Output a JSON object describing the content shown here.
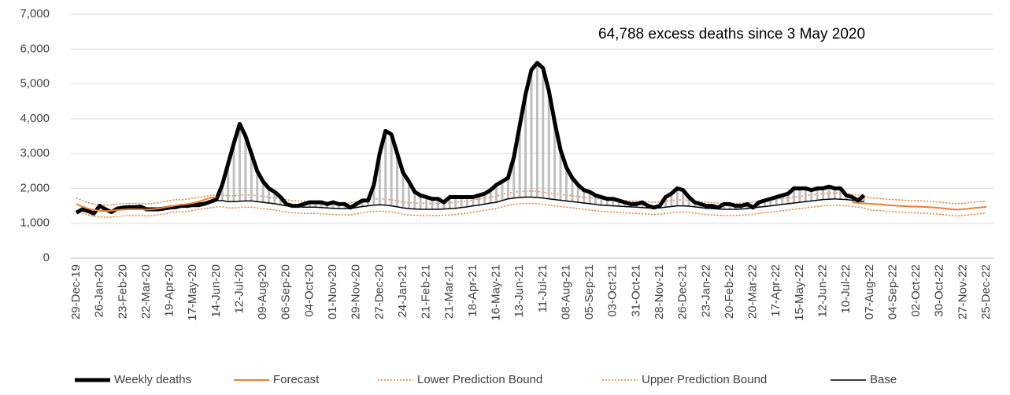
{
  "chart_data": {
    "type": "line",
    "annotation": "64,788 excess deaths since 3 May 2020",
    "categories": [
      "29-Dec-19",
      null,
      null,
      null,
      "26-Jan-20",
      null,
      null,
      null,
      "23-Feb-20",
      null,
      null,
      null,
      "22-Mar-20",
      null,
      null,
      null,
      "19-Apr-20",
      null,
      null,
      null,
      "17-May-20",
      null,
      null,
      null,
      "14-Jun-20",
      null,
      null,
      null,
      "12-Jul-20",
      null,
      null,
      null,
      "09-Aug-20",
      null,
      null,
      null,
      "06-Sep-20",
      null,
      null,
      null,
      "04-Oct-20",
      null,
      null,
      null,
      "01-Nov-20",
      null,
      null,
      null,
      "29-Nov-20",
      null,
      null,
      null,
      "27-Dec-20",
      null,
      null,
      null,
      "24-Jan-21",
      null,
      null,
      null,
      "21-Feb-21",
      null,
      null,
      null,
      "21-Mar-21",
      null,
      null,
      null,
      "18-Apr-21",
      null,
      null,
      null,
      "16-May-21",
      null,
      null,
      null,
      "13-Jun-21",
      null,
      null,
      null,
      "11-Jul-21",
      null,
      null,
      null,
      "08-Aug-21",
      null,
      null,
      null,
      "05-Sep-21",
      null,
      null,
      null,
      "03-Oct-21",
      null,
      null,
      null,
      "31-Oct-21",
      null,
      null,
      null,
      "28-Nov-21",
      null,
      null,
      null,
      "26-Dec-21",
      null,
      null,
      null,
      "23-Jan-22",
      null,
      null,
      null,
      "20-Feb-22",
      null,
      null,
      null,
      "20-Mar-22",
      null,
      null,
      null,
      "17-Apr-22",
      null,
      null,
      null,
      "15-May-22",
      null,
      null,
      null,
      "12-Jun-22",
      null,
      null,
      null,
      "10-Jul-22",
      null,
      null,
      null,
      "07-Aug-22",
      null,
      null,
      null,
      "04-Sep-22",
      null,
      null,
      null,
      "02-Oct-22",
      null,
      null,
      null,
      "30-Oct-22",
      null,
      null,
      null,
      "27-Nov-22",
      null,
      null,
      null,
      "25-Dec-22"
    ],
    "ylim": [
      0,
      7000
    ],
    "yticks": [
      0,
      {
        "value": 1000,
        "label": "1,000"
      },
      {
        "value": 2000,
        "label": "2,000"
      },
      {
        "value": 3000,
        "label": "3,000"
      },
      {
        "value": 4000,
        "label": "4,000"
      },
      {
        "value": 5000,
        "label": "5,000"
      },
      {
        "value": 6000,
        "label": "6,000"
      },
      {
        "value": 7000,
        "label": "7,000"
      }
    ],
    "grid": true,
    "legend": "bottom",
    "series": [
      {
        "name": "Weekly deaths",
        "color": "#000000",
        "line_width": 5,
        "dash": "solid",
        "values": [
          1300,
          1400,
          1350,
          1280,
          1500,
          1400,
          1320,
          1420,
          1450,
          1460,
          1460,
          1480,
          1400,
          1400,
          1400,
          1420,
          1450,
          1460,
          1500,
          1500,
          1520,
          1520,
          1560,
          1620,
          1680,
          2100,
          2700,
          3300,
          3850,
          3500,
          3000,
          2500,
          2200,
          2000,
          1900,
          1750,
          1550,
          1500,
          1500,
          1550,
          1600,
          1600,
          1600,
          1550,
          1600,
          1550,
          1550,
          1450,
          1550,
          1650,
          1650,
          2100,
          3000,
          3650,
          3550,
          3000,
          2450,
          2200,
          1900,
          1800,
          1750,
          1700,
          1700,
          1600,
          1750,
          1750,
          1750,
          1750,
          1750,
          1800,
          1850,
          1950,
          2100,
          2200,
          2300,
          2900,
          3800,
          4700,
          5400,
          5600,
          5450,
          4800,
          3900,
          3100,
          2600,
          2300,
          2100,
          1950,
          1900,
          1800,
          1750,
          1700,
          1700,
          1650,
          1600,
          1550,
          1550,
          1600,
          1500,
          1450,
          1500,
          1750,
          1850,
          2000,
          1950,
          1750,
          1600,
          1550,
          1500,
          1500,
          1450,
          1550,
          1550,
          1500,
          1500,
          1550,
          1450,
          1600,
          1650,
          1700,
          1750,
          1800,
          1850,
          2000,
          2000,
          2000,
          1950,
          2000,
          2000,
          2050,
          2000,
          2000,
          1800,
          1750,
          1650,
          1800,
          null,
          null,
          null,
          null,
          null,
          null,
          null,
          null,
          null,
          null,
          null,
          null,
          null,
          null,
          null,
          null,
          null,
          null,
          null,
          null,
          null
        ]
      },
      {
        "name": "Forecast",
        "color": "#ed7d31",
        "line_width": 2,
        "dash": "solid",
        "values": [
          1550,
          1480,
          1420,
          1380,
          1360,
          1350,
          1360,
          1380,
          1390,
          1400,
          1400,
          1400,
          1390,
          1400,
          1420,
          1450,
          1480,
          1510,
          1530,
          1550,
          1580,
          1620,
          1680,
          1730,
          1750,
          null,
          null,
          null,
          null,
          null,
          null,
          null,
          null,
          null,
          null,
          null,
          null,
          null,
          null,
          null,
          null,
          null,
          null,
          null,
          null,
          null,
          null,
          null,
          null,
          null,
          null,
          null,
          null,
          null,
          null,
          null,
          null,
          null,
          null,
          null,
          null,
          null,
          null,
          null,
          null,
          null,
          null,
          null,
          null,
          null,
          null,
          null,
          null,
          null,
          null,
          null,
          null,
          null,
          null,
          null,
          null,
          null,
          null,
          null,
          null,
          null,
          null,
          null,
          null,
          null,
          null,
          null,
          null,
          null,
          null,
          null,
          null,
          null,
          null,
          null,
          null,
          null,
          null,
          null,
          null,
          null,
          null,
          null,
          null,
          null,
          null,
          null,
          null,
          null,
          null,
          null,
          null,
          null,
          null,
          null,
          null,
          null,
          null,
          null,
          null,
          null,
          null,
          null,
          null,
          null,
          null,
          null,
          null,
          1600,
          1580,
          1570,
          1560,
          1550,
          1540,
          1520,
          1510,
          1500,
          1490,
          1480,
          1480,
          1470,
          1460,
          1450,
          1440,
          1420,
          1400,
          1390,
          1400,
          1420,
          1440,
          1450,
          1470
        ]
      },
      {
        "name": "Lower Prediction Bound",
        "color": "#ed7d31",
        "line_width": 1.5,
        "dash": "dotted",
        "values": [
          1370,
          1300,
          1240,
          1200,
          1180,
          1170,
          1180,
          1200,
          1210,
          1220,
          1220,
          1220,
          1210,
          1220,
          1240,
          1270,
          1300,
          1330,
          1320,
          1340,
          1370,
          1400,
          1420,
          1440,
          1470,
          1470,
          1440,
          1440,
          1450,
          1460,
          1460,
          1440,
          1420,
          1400,
          1380,
          1350,
          1320,
          1300,
          1290,
          1280,
          1280,
          1280,
          1270,
          1260,
          1250,
          1240,
          1240,
          1240,
          1270,
          1300,
          1320,
          1340,
          1350,
          1340,
          1320,
          1290,
          1260,
          1240,
          1230,
          1220,
          1220,
          1220,
          1220,
          1230,
          1240,
          1250,
          1270,
          1290,
          1320,
          1340,
          1370,
          1400,
          1420,
          1470,
          1520,
          1540,
          1560,
          1570,
          1570,
          1560,
          1540,
          1520,
          1500,
          1480,
          1460,
          1440,
          1420,
          1400,
          1380,
          1360,
          1340,
          1330,
          1320,
          1310,
          1300,
          1290,
          1280,
          1270,
          1260,
          1250,
          1260,
          1280,
          1300,
          1320,
          1320,
          1310,
          1290,
          1270,
          1250,
          1240,
          1230,
          1220,
          1220,
          1220,
          1230,
          1240,
          1260,
          1280,
          1300,
          1320,
          1340,
          1360,
          1380,
          1400,
          1420,
          1440,
          1460,
          1480,
          1500,
          1510,
          1520,
          1510,
          1500,
          1480,
          1460,
          1440,
          1380,
          1370,
          1360,
          1340,
          1330,
          1320,
          1310,
          1300,
          1300,
          1290,
          1280,
          1270,
          1260,
          1240,
          1220,
          1210,
          1220,
          1240,
          1260,
          1270,
          1290
        ]
      },
      {
        "name": "Upper Prediction Bound",
        "color": "#ed7d31",
        "line_width": 1.5,
        "dash": "dotted",
        "values": [
          1720,
          1650,
          1590,
          1550,
          1530,
          1520,
          1530,
          1550,
          1560,
          1570,
          1570,
          1570,
          1560,
          1570,
          1590,
          1620,
          1650,
          1680,
          1670,
          1690,
          1720,
          1750,
          1770,
          1790,
          1820,
          1820,
          1790,
          1790,
          1800,
          1810,
          1810,
          1790,
          1770,
          1750,
          1730,
          1700,
          1670,
          1650,
          1640,
          1630,
          1630,
          1630,
          1620,
          1610,
          1600,
          1590,
          1590,
          1590,
          1620,
          1650,
          1670,
          1690,
          1700,
          1690,
          1670,
          1640,
          1610,
          1590,
          1580,
          1570,
          1570,
          1570,
          1570,
          1580,
          1590,
          1600,
          1620,
          1640,
          1670,
          1690,
          1720,
          1750,
          1770,
          1820,
          1870,
          1890,
          1910,
          1920,
          1920,
          1910,
          1890,
          1870,
          1850,
          1830,
          1810,
          1790,
          1770,
          1750,
          1730,
          1710,
          1690,
          1680,
          1670,
          1660,
          1650,
          1640,
          1630,
          1620,
          1610,
          1600,
          1610,
          1630,
          1650,
          1670,
          1670,
          1660,
          1640,
          1620,
          1600,
          1590,
          1580,
          1570,
          1570,
          1570,
          1580,
          1590,
          1610,
          1630,
          1650,
          1670,
          1690,
          1710,
          1730,
          1750,
          1770,
          1790,
          1810,
          1830,
          1850,
          1860,
          1870,
          1860,
          1850,
          1830,
          1810,
          1790,
          1730,
          1720,
          1710,
          1690,
          1680,
          1670,
          1660,
          1650,
          1650,
          1640,
          1630,
          1620,
          1610,
          1590,
          1570,
          1560,
          1570,
          1590,
          1610,
          1620,
          1640
        ]
      },
      {
        "name": "Base",
        "color": "#000000",
        "line_width": 1.5,
        "dash": "solid",
        "values": [
          null,
          null,
          null,
          null,
          null,
          null,
          null,
          null,
          null,
          null,
          null,
          null,
          null,
          null,
          null,
          null,
          null,
          null,
          1500,
          1520,
          1550,
          1580,
          1600,
          1620,
          1650,
          1650,
          1620,
          1620,
          1630,
          1640,
          1640,
          1620,
          1600,
          1580,
          1560,
          1530,
          1500,
          1480,
          1470,
          1460,
          1460,
          1460,
          1450,
          1440,
          1430,
          1420,
          1420,
          1420,
          1450,
          1480,
          1500,
          1520,
          1530,
          1520,
          1500,
          1470,
          1440,
          1420,
          1410,
          1400,
          1400,
          1400,
          1400,
          1410,
          1420,
          1430,
          1450,
          1470,
          1500,
          1520,
          1550,
          1580,
          1600,
          1650,
          1700,
          1720,
          1740,
          1750,
          1750,
          1740,
          1720,
          1700,
          1680,
          1660,
          1640,
          1620,
          1600,
          1580,
          1560,
          1540,
          1520,
          1510,
          1500,
          1490,
          1480,
          1470,
          1460,
          1450,
          1440,
          1430,
          1440,
          1460,
          1480,
          1500,
          1500,
          1490,
          1470,
          1450,
          1430,
          1420,
          1410,
          1400,
          1400,
          1400,
          1410,
          1420,
          1440,
          1460,
          1480,
          1500,
          1520,
          1540,
          1560,
          1580,
          1600,
          1620,
          1640,
          1660,
          1680,
          1690,
          1700,
          1690,
          1680,
          1660,
          1640,
          1620,
          null,
          null,
          null,
          null,
          null,
          null,
          null,
          null,
          null,
          null,
          null,
          null,
          null,
          null,
          null,
          null,
          null,
          null,
          null,
          null,
          null
        ]
      }
    ]
  }
}
